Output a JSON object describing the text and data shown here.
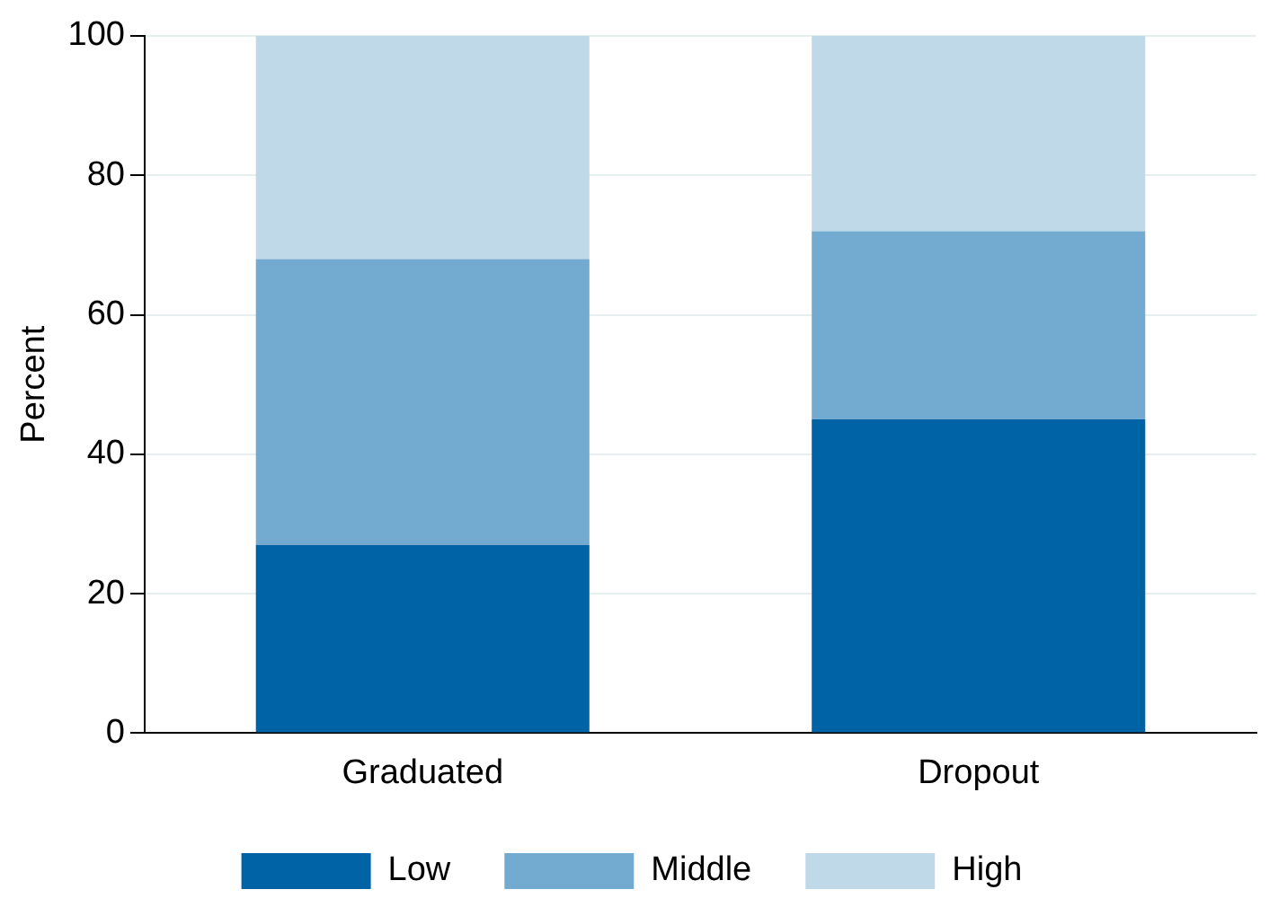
{
  "chart_data": {
    "type": "bar",
    "stacked": true,
    "ylabel": "Percent",
    "categories": [
      "Graduated",
      "Dropout"
    ],
    "series": [
      {
        "name": "Low",
        "color": "#0063a6",
        "values": [
          27,
          45
        ]
      },
      {
        "name": "Middle",
        "color": "#73aacf",
        "values": [
          41,
          27
        ]
      },
      {
        "name": "High",
        "color": "#c0d9e8",
        "values": [
          32,
          28
        ]
      }
    ],
    "ylim": [
      0,
      100
    ],
    "yticks": [
      0,
      20,
      40,
      60,
      80,
      100
    ],
    "grid": "y",
    "legend": "bottom"
  }
}
